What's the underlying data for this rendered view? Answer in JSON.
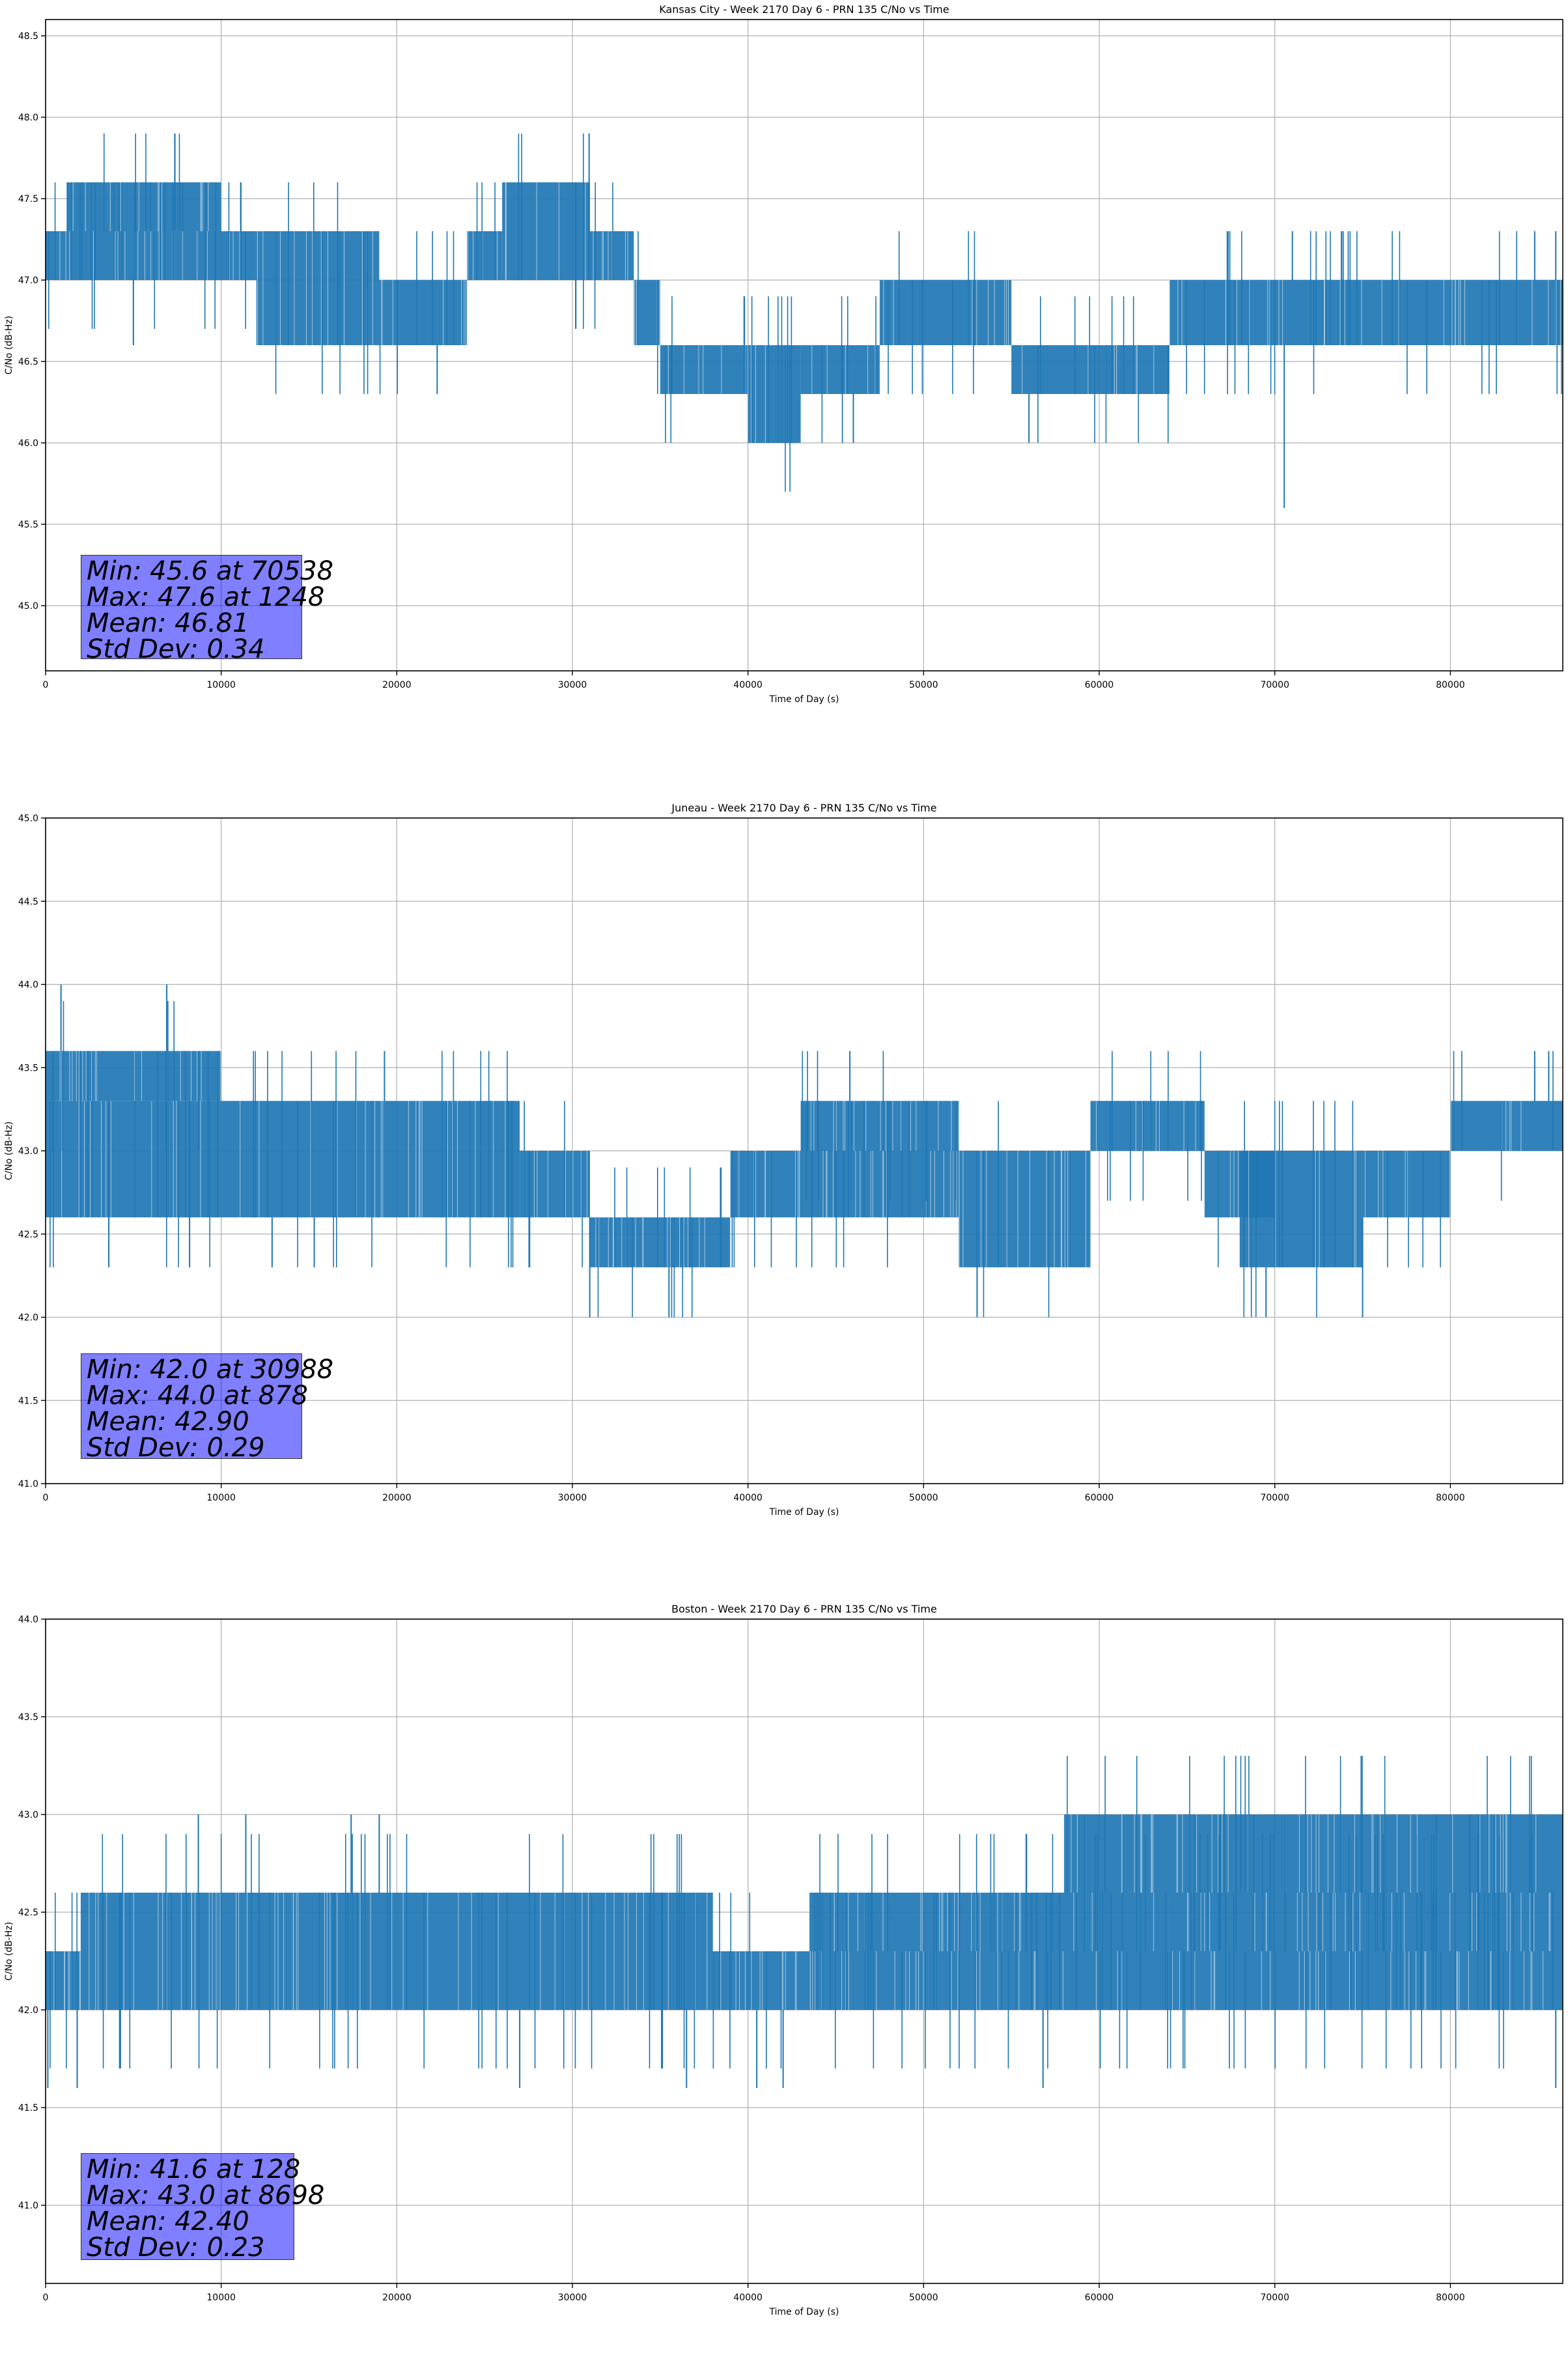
{
  "chart_data": [
    {
      "type": "line",
      "title": "Kansas City - Week 2170 Day 6 - PRN 135 C/No vs Time",
      "xlabel": "Time of Day (s)",
      "ylabel": "C/No (dB-Hz)",
      "xlim": [
        0,
        86400
      ],
      "ylim": [
        44.6,
        48.6
      ],
      "grid": true,
      "xticks": [
        0,
        10000,
        20000,
        30000,
        40000,
        50000,
        60000,
        70000,
        80000
      ],
      "xtick_labels": [
        "0",
        "10000",
        "20000",
        "30000",
        "40000",
        "50000",
        "60000",
        "70000",
        "80000"
      ],
      "yticks": [
        45.0,
        45.5,
        46.0,
        46.5,
        47.0,
        47.5,
        48.0,
        48.5
      ],
      "ytick_labels": [
        "45.0",
        "45.5",
        "46.0",
        "46.5",
        "47.0",
        "47.5",
        "48.0",
        "48.5"
      ],
      "series_color": "#1f77b4",
      "segments": [
        {
          "x": [
            0,
            3800
          ],
          "lo": 47.0,
          "hi": 47.3
        },
        {
          "x": [
            1200,
            10000
          ],
          "lo": 47.3,
          "hi": 47.6
        },
        {
          "x": [
            3800,
            12000
          ],
          "lo": 47.0,
          "hi": 47.3
        },
        {
          "x": [
            12000,
            19000
          ],
          "lo": 46.6,
          "hi": 47.3
        },
        {
          "x": [
            19000,
            24000
          ],
          "lo": 46.6,
          "hi": 47.0
        },
        {
          "x": [
            24000,
            26000
          ],
          "lo": 47.0,
          "hi": 47.3
        },
        {
          "x": [
            26000,
            31000
          ],
          "lo": 47.0,
          "hi": 47.6
        },
        {
          "x": [
            31000,
            33500
          ],
          "lo": 47.0,
          "hi": 47.3
        },
        {
          "x": [
            33500,
            35000
          ],
          "lo": 46.6,
          "hi": 47.0
        },
        {
          "x": [
            35000,
            40000
          ],
          "lo": 46.3,
          "hi": 46.6
        },
        {
          "x": [
            40000,
            43000
          ],
          "lo": 46.0,
          "hi": 46.6
        },
        {
          "x": [
            43000,
            47500
          ],
          "lo": 46.3,
          "hi": 46.6
        },
        {
          "x": [
            47500,
            55000
          ],
          "lo": 46.6,
          "hi": 47.0
        },
        {
          "x": [
            55000,
            64000
          ],
          "lo": 46.3,
          "hi": 46.6
        },
        {
          "x": [
            64000,
            86400
          ],
          "lo": 46.6,
          "hi": 47.0
        }
      ],
      "spikes": [
        {
          "x": 1248,
          "y": 47.6
        },
        {
          "x": 5000,
          "y": 46.6
        },
        {
          "x": 22300,
          "y": 46.3
        },
        {
          "x": 46000,
          "y": 46.0
        },
        {
          "x": 56000,
          "y": 46.0
        },
        {
          "x": 63800,
          "y": 46.3
        },
        {
          "x": 70538,
          "y": 45.6
        },
        {
          "x": 71000,
          "y": 47.3
        },
        {
          "x": 84800,
          "y": 47.3
        },
        {
          "x": 86000,
          "y": 47.3
        }
      ],
      "stats": {
        "min": "Min: 45.6 at 70538",
        "max": "Max: 47.6 at 1248",
        "mean": "Mean: 46.81",
        "std": "Std Dev: 0.34"
      }
    },
    {
      "type": "line",
      "title": "Juneau - Week 2170 Day 6 - PRN 135 C/No vs Time",
      "xlabel": "Time of Day (s)",
      "ylabel": "C/No (dB-Hz)",
      "xlim": [
        0,
        86400
      ],
      "ylim": [
        41.0,
        45.0
      ],
      "grid": true,
      "xticks": [
        0,
        10000,
        20000,
        30000,
        40000,
        50000,
        60000,
        70000,
        80000
      ],
      "xtick_labels": [
        "0",
        "10000",
        "20000",
        "30000",
        "40000",
        "50000",
        "60000",
        "70000",
        "80000"
      ],
      "yticks": [
        41.0,
        41.5,
        42.0,
        42.5,
        43.0,
        43.5,
        44.0,
        44.5,
        45.0
      ],
      "ytick_labels": [
        "41.0",
        "41.5",
        "42.0",
        "42.5",
        "43.0",
        "43.5",
        "44.0",
        "44.5",
        "45.0"
      ],
      "series_color": "#1f77b4",
      "segments": [
        {
          "x": [
            0,
            10000
          ],
          "lo": 42.6,
          "hi": 43.3
        },
        {
          "x": [
            0,
            10000
          ],
          "lo": 43.3,
          "hi": 43.6
        },
        {
          "x": [
            10000,
            27000
          ],
          "lo": 42.6,
          "hi": 43.3
        },
        {
          "x": [
            27000,
            31000
          ],
          "lo": 42.6,
          "hi": 43.0
        },
        {
          "x": [
            31000,
            39000
          ],
          "lo": 42.3,
          "hi": 42.6
        },
        {
          "x": [
            39000,
            52000
          ],
          "lo": 42.6,
          "hi": 43.0
        },
        {
          "x": [
            43000,
            52000
          ],
          "lo": 43.0,
          "hi": 43.3
        },
        {
          "x": [
            52000,
            59500
          ],
          "lo": 42.3,
          "hi": 43.0
        },
        {
          "x": [
            59500,
            66000
          ],
          "lo": 43.0,
          "hi": 43.3
        },
        {
          "x": [
            66000,
            70000
          ],
          "lo": 42.6,
          "hi": 43.0
        },
        {
          "x": [
            68000,
            75000
          ],
          "lo": 42.3,
          "hi": 43.0
        },
        {
          "x": [
            75000,
            80000
          ],
          "lo": 42.6,
          "hi": 43.0
        },
        {
          "x": [
            80000,
            86400
          ],
          "lo": 43.0,
          "hi": 43.3
        }
      ],
      "spikes": [
        {
          "x": 878,
          "y": 44.0
        },
        {
          "x": 6900,
          "y": 44.0
        },
        {
          "x": 3600,
          "y": 42.3
        },
        {
          "x": 8200,
          "y": 42.3
        },
        {
          "x": 12900,
          "y": 42.3
        },
        {
          "x": 15300,
          "y": 42.3
        },
        {
          "x": 19300,
          "y": 43.6
        },
        {
          "x": 30988,
          "y": 42.0
        },
        {
          "x": 35500,
          "y": 42.0
        },
        {
          "x": 45800,
          "y": 43.6
        },
        {
          "x": 69500,
          "y": 42.0
        },
        {
          "x": 75000,
          "y": 42.0
        },
        {
          "x": 84800,
          "y": 43.6
        },
        {
          "x": 85600,
          "y": 43.6
        }
      ],
      "stats": {
        "min": "Min: 42.0 at 30988",
        "max": "Max: 44.0 at 878",
        "mean": "Mean: 42.90",
        "std": "Std Dev: 0.29"
      }
    },
    {
      "type": "line",
      "title": "Boston - Week 2170 Day 6 - PRN 135 C/No vs Time",
      "xlabel": "Time of Day (s)",
      "ylabel": "C/No (dB-Hz)",
      "xlim": [
        0,
        86400
      ],
      "ylim": [
        40.6,
        44.0
      ],
      "grid": true,
      "xticks": [
        0,
        10000,
        20000,
        30000,
        40000,
        50000,
        60000,
        70000,
        80000
      ],
      "xtick_labels": [
        "0",
        "10000",
        "20000",
        "30000",
        "40000",
        "50000",
        "60000",
        "70000",
        "80000"
      ],
      "yticks": [
        41.0,
        41.5,
        42.0,
        42.5,
        43.0,
        43.5,
        44.0
      ],
      "ytick_labels": [
        "41.0",
        "41.5",
        "42.0",
        "42.5",
        "43.0",
        "43.5",
        "44.0"
      ],
      "series_color": "#1f77b4",
      "segments": [
        {
          "x": [
            0,
            2000
          ],
          "lo": 42.0,
          "hi": 42.3
        },
        {
          "x": [
            2000,
            14000
          ],
          "lo": 42.0,
          "hi": 42.6
        },
        {
          "x": [
            14000,
            38000
          ],
          "lo": 42.0,
          "hi": 42.6
        },
        {
          "x": [
            38000,
            43500
          ],
          "lo": 42.0,
          "hi": 42.3
        },
        {
          "x": [
            43500,
            64000
          ],
          "lo": 42.3,
          "hi": 42.6
        },
        {
          "x": [
            43500,
            64000
          ],
          "lo": 42.0,
          "hi": 42.3
        },
        {
          "x": [
            64000,
            86400
          ],
          "lo": 42.3,
          "hi": 42.6
        },
        {
          "x": [
            58000,
            86400
          ],
          "lo": 42.6,
          "hi": 43.0
        },
        {
          "x": [
            64000,
            86400
          ],
          "lo": 42.0,
          "hi": 42.3
        }
      ],
      "spikes": [
        {
          "x": 128,
          "y": 41.6
        },
        {
          "x": 1800,
          "y": 41.6
        },
        {
          "x": 8698,
          "y": 43.0
        },
        {
          "x": 11400,
          "y": 43.0
        },
        {
          "x": 17400,
          "y": 43.0
        },
        {
          "x": 19000,
          "y": 43.0
        },
        {
          "x": 27000,
          "y": 41.6
        },
        {
          "x": 36500,
          "y": 41.6
        },
        {
          "x": 40500,
          "y": 41.6
        },
        {
          "x": 42000,
          "y": 41.6
        },
        {
          "x": 56800,
          "y": 41.6
        },
        {
          "x": 86000,
          "y": 41.6
        }
      ],
      "stats": {
        "min": "Min: 41.6 at 128",
        "max": "Max: 43.0 at 8698",
        "mean": "Mean: 42.40",
        "std": "Std Dev: 0.23"
      }
    }
  ]
}
